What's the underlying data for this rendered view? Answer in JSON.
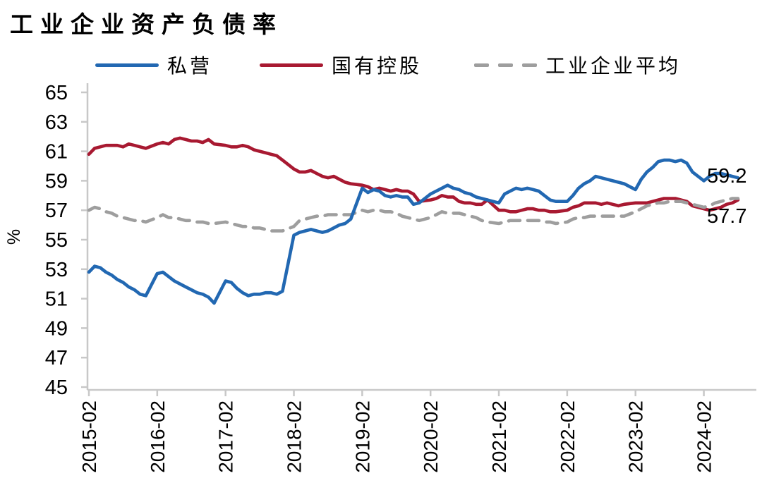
{
  "title": "工业企业资产负债率",
  "legend": [
    {
      "label": "私营",
      "color": "#2268B2",
      "style": "solid"
    },
    {
      "label": "国有控股",
      "color": "#A81931",
      "style": "solid"
    },
    {
      "label": "工业企业平均",
      "color": "#9E9E9E",
      "style": "dashed"
    }
  ],
  "y_axis": {
    "unit_label": "%",
    "ticks": [
      65,
      63,
      61,
      59,
      57,
      55,
      53,
      51,
      49,
      47,
      45
    ]
  },
  "x_axis": {
    "tick_labels": [
      "2015-02",
      "2016-02",
      "2017-02",
      "2018-02",
      "2019-02",
      "2020-02",
      "2021-02",
      "2022-02",
      "2023-02",
      "2024-02"
    ]
  },
  "end_labels": [
    {
      "series": "私营",
      "value": "59.2"
    },
    {
      "series": "国有控股",
      "value": "57.7"
    }
  ],
  "colors": {
    "axis": "#C8C8C8",
    "text": "#000000"
  },
  "chart_data": {
    "type": "line",
    "title": "工业企业资产负债率",
    "ylabel": "%",
    "ylim": [
      45,
      65
    ],
    "grid": false,
    "legend_position": "top",
    "x": [
      "2015-02",
      "2015-03",
      "2015-04",
      "2015-05",
      "2015-06",
      "2015-07",
      "2015-08",
      "2015-09",
      "2015-10",
      "2015-11",
      "2015-12",
      "2016-02",
      "2016-03",
      "2016-04",
      "2016-05",
      "2016-06",
      "2016-07",
      "2016-08",
      "2016-09",
      "2016-10",
      "2016-11",
      "2016-12",
      "2017-02",
      "2017-03",
      "2017-04",
      "2017-05",
      "2017-06",
      "2017-07",
      "2017-08",
      "2017-09",
      "2017-10",
      "2017-11",
      "2017-12",
      "2018-02",
      "2018-03",
      "2018-04",
      "2018-05",
      "2018-06",
      "2018-07",
      "2018-08",
      "2018-09",
      "2018-10",
      "2018-11",
      "2018-12",
      "2019-02",
      "2019-03",
      "2019-04",
      "2019-05",
      "2019-06",
      "2019-07",
      "2019-08",
      "2019-09",
      "2019-10",
      "2019-11",
      "2019-12",
      "2020-02",
      "2020-03",
      "2020-04",
      "2020-05",
      "2020-06",
      "2020-07",
      "2020-08",
      "2020-09",
      "2020-10",
      "2020-11",
      "2020-12",
      "2021-02",
      "2021-03",
      "2021-04",
      "2021-05",
      "2021-06",
      "2021-07",
      "2021-08",
      "2021-09",
      "2021-10",
      "2021-11",
      "2021-12",
      "2022-02",
      "2022-03",
      "2022-04",
      "2022-05",
      "2022-06",
      "2022-07",
      "2022-08",
      "2022-09",
      "2022-10",
      "2022-11",
      "2022-12",
      "2023-02",
      "2023-03",
      "2023-04",
      "2023-05",
      "2023-06",
      "2023-07",
      "2023-08",
      "2023-09",
      "2023-10",
      "2023-11",
      "2023-12",
      "2024-02",
      "2024-03",
      "2024-04",
      "2024-05",
      "2024-06",
      "2024-07",
      "2024-08"
    ],
    "series": [
      {
        "name": "国有控股",
        "color": "#A81931",
        "dash": false,
        "values": [
          60.8,
          61.2,
          61.3,
          61.4,
          61.4,
          61.4,
          61.3,
          61.5,
          61.4,
          61.3,
          61.2,
          61.5,
          61.6,
          61.5,
          61.8,
          61.9,
          61.8,
          61.7,
          61.7,
          61.6,
          61.8,
          61.5,
          61.4,
          61.3,
          61.3,
          61.4,
          61.3,
          61.1,
          61.0,
          60.9,
          60.8,
          60.7,
          60.4,
          59.8,
          59.6,
          59.6,
          59.7,
          59.5,
          59.3,
          59.2,
          59.3,
          59.1,
          58.9,
          58.8,
          58.7,
          58.6,
          58.4,
          58.5,
          58.4,
          58.3,
          58.4,
          58.3,
          58.3,
          58.1,
          57.6,
          57.7,
          57.8,
          58.0,
          57.9,
          57.9,
          57.6,
          57.5,
          57.5,
          57.4,
          57.4,
          57.7,
          57.0,
          57.0,
          56.9,
          56.9,
          57.0,
          57.1,
          57.1,
          57.0,
          57.0,
          56.9,
          56.9,
          57.0,
          57.2,
          57.3,
          57.5,
          57.5,
          57.5,
          57.4,
          57.5,
          57.4,
          57.3,
          57.4,
          57.5,
          57.5,
          57.5,
          57.6,
          57.7,
          57.8,
          57.8,
          57.8,
          57.7,
          57.6,
          57.3,
          57.1,
          57.0,
          57.1,
          57.2,
          57.4,
          57.5,
          57.7
        ]
      },
      {
        "name": "工业企业平均",
        "color": "#9E9E9E",
        "dash": true,
        "values": [
          57.0,
          57.2,
          57.1,
          56.9,
          56.8,
          56.6,
          56.5,
          56.4,
          56.3,
          56.3,
          56.2,
          56.5,
          56.7,
          56.5,
          56.5,
          56.4,
          56.3,
          56.3,
          56.2,
          56.2,
          56.1,
          56.1,
          56.2,
          56.1,
          56.0,
          55.9,
          55.9,
          55.8,
          55.8,
          55.7,
          55.6,
          55.6,
          55.6,
          55.9,
          56.3,
          56.4,
          56.5,
          56.6,
          56.6,
          56.7,
          56.7,
          56.7,
          56.7,
          56.7,
          57.0,
          56.9,
          57.0,
          57.0,
          56.9,
          56.9,
          56.8,
          56.6,
          56.5,
          56.4,
          56.3,
          56.5,
          56.7,
          56.9,
          56.8,
          56.8,
          56.8,
          56.7,
          56.6,
          56.5,
          56.3,
          56.2,
          56.1,
          56.2,
          56.3,
          56.3,
          56.3,
          56.3,
          56.3,
          56.3,
          56.2,
          56.2,
          56.1,
          56.2,
          56.4,
          56.5,
          56.5,
          56.6,
          56.6,
          56.6,
          56.6,
          56.6,
          56.6,
          56.6,
          56.9,
          57.1,
          57.3,
          57.4,
          57.5,
          57.5,
          57.6,
          57.6,
          57.6,
          57.5,
          57.4,
          57.2,
          57.3,
          57.5,
          57.6,
          57.7,
          57.8,
          57.8
        ]
      },
      {
        "name": "私营",
        "color": "#2268B2",
        "dash": false,
        "values": [
          52.8,
          53.2,
          53.1,
          52.8,
          52.6,
          52.3,
          52.1,
          51.8,
          51.6,
          51.3,
          51.2,
          52.7,
          52.8,
          52.5,
          52.2,
          52.0,
          51.8,
          51.6,
          51.4,
          51.3,
          51.1,
          50.7,
          52.2,
          52.1,
          51.7,
          51.4,
          51.2,
          51.3,
          51.3,
          51.4,
          51.4,
          51.3,
          51.5,
          55.3,
          55.5,
          55.6,
          55.7,
          55.6,
          55.5,
          55.6,
          55.8,
          56.0,
          56.1,
          56.4,
          58.5,
          58.2,
          58.4,
          58.3,
          58.0,
          57.9,
          58.0,
          57.9,
          57.9,
          57.4,
          57.5,
          58.1,
          58.3,
          58.5,
          58.7,
          58.5,
          58.4,
          58.2,
          58.1,
          57.9,
          57.8,
          57.7,
          57.5,
          58.1,
          58.3,
          58.5,
          58.4,
          58.5,
          58.4,
          58.3,
          58.0,
          57.7,
          57.6,
          57.6,
          58.0,
          58.5,
          58.8,
          59.0,
          59.3,
          59.2,
          59.1,
          59.0,
          58.9,
          58.8,
          58.4,
          59.1,
          59.6,
          59.9,
          60.3,
          60.4,
          60.4,
          60.3,
          60.4,
          60.2,
          59.6,
          59.0,
          59.3,
          59.5,
          59.5,
          59.4,
          59.3,
          59.2
        ]
      }
    ]
  }
}
